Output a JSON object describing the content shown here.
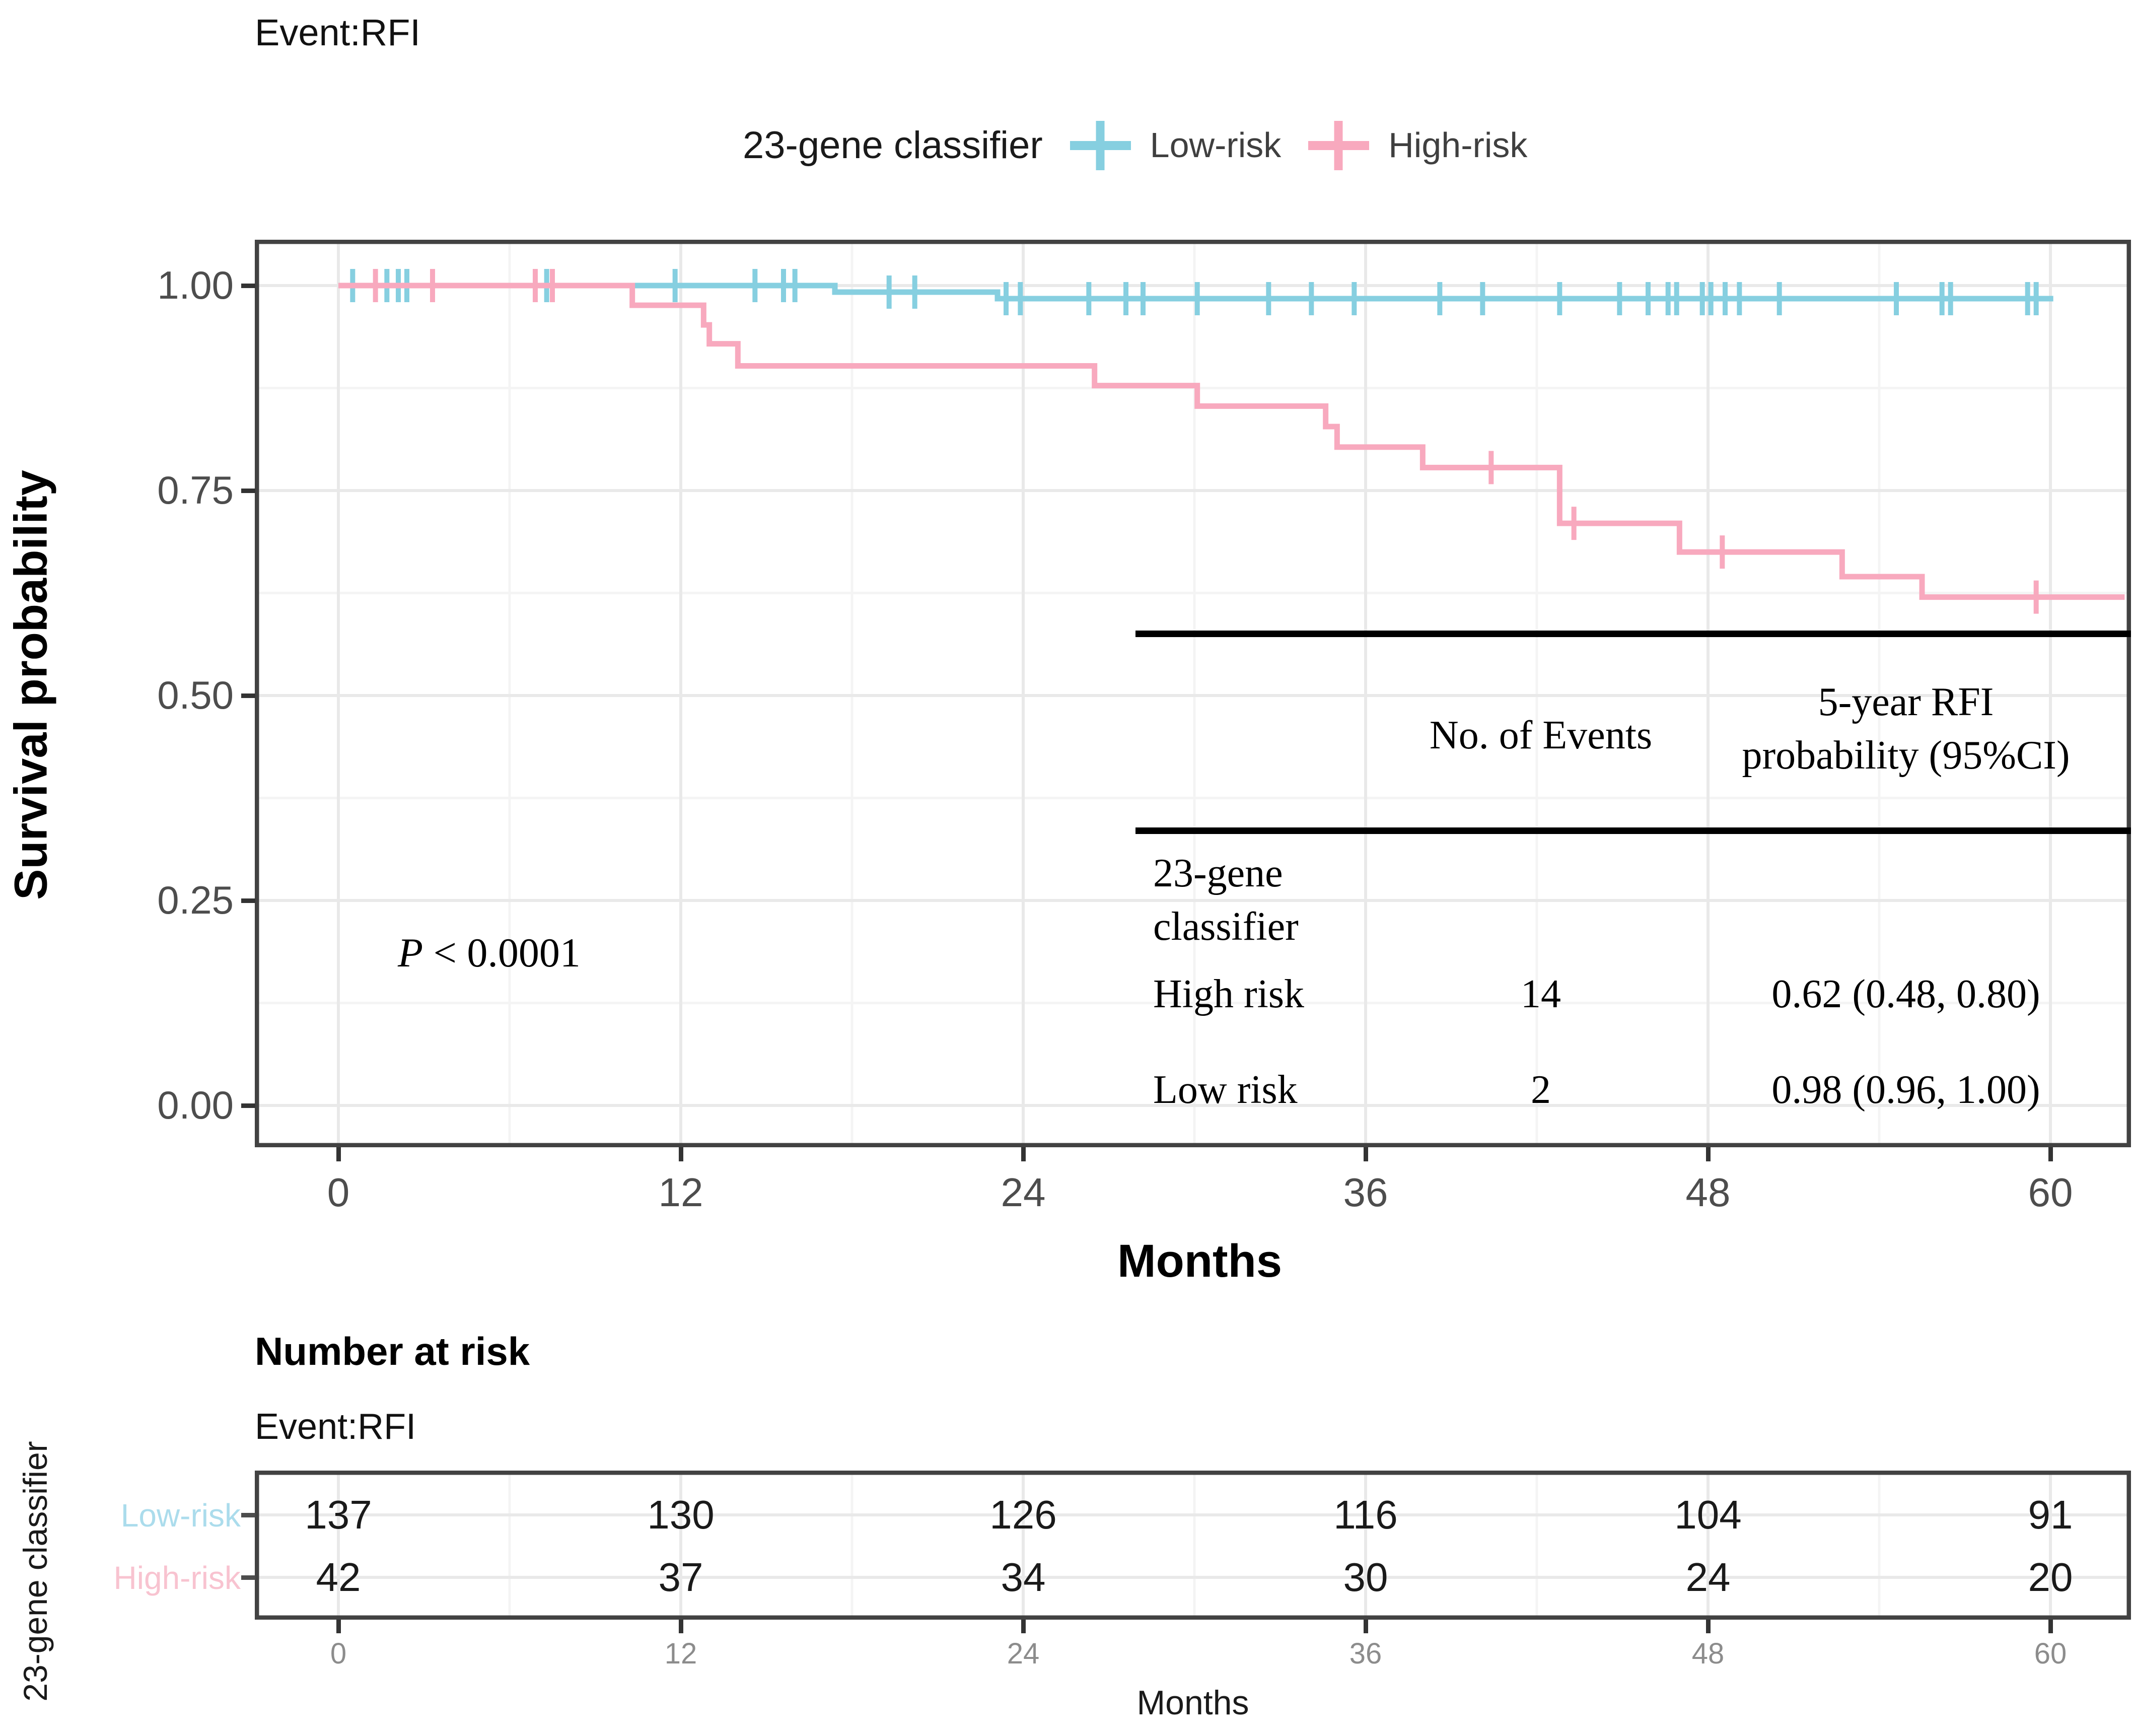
{
  "figure_title": "Event:RFI",
  "colors": {
    "low_risk": "#86CFE0",
    "high_risk": "#F8A9BE",
    "low_risk_label": "#ABDCEC",
    "high_risk_label": "#F8C3D0",
    "grid_major": "#E9E9E9",
    "grid_minor": "#F4F4F4",
    "panel_border": "#424242"
  },
  "legend": {
    "title": "23-gene classifier",
    "items": [
      {
        "label": "Low-risk"
      },
      {
        "label": "High-risk"
      }
    ]
  },
  "yaxis": {
    "title": "Survival probability",
    "ticks": [
      "1.00",
      "0.75",
      "0.50",
      "0.25",
      "0.00"
    ],
    "tick_values": [
      1.0,
      0.75,
      0.5,
      0.25,
      0.0
    ]
  },
  "xaxis": {
    "title": "Months",
    "ticks": [
      "0",
      "12",
      "24",
      "36",
      "48",
      "60"
    ],
    "tick_values": [
      0,
      12,
      24,
      36,
      48,
      60
    ],
    "minor_values": [
      6,
      18,
      30,
      42,
      54
    ]
  },
  "pvalue": {
    "symbol": "P",
    "text": " < 0.0001"
  },
  "stats_table": {
    "col1_header": "No. of Events",
    "col2_header_lines": [
      "5-year RFI",
      "probability (95%CI)"
    ],
    "group_label_lines": [
      "23-gene",
      "classifier"
    ],
    "rows": [
      {
        "label": "High risk",
        "events": "14",
        "estimate": "0.62 (0.48, 0.80)"
      },
      {
        "label": "Low risk",
        "events": "2",
        "estimate": "0.98 (0.96, 1.00)"
      }
    ]
  },
  "chart_data": {
    "type": "line",
    "subtype": "kaplan-meier-step",
    "title": "Event:RFI",
    "xlabel": "Months",
    "ylabel": "Survival probability",
    "xlim": [
      0,
      63
    ],
    "ylim": [
      0.0,
      1.05
    ],
    "grid": "major+minor",
    "legend_position": "top",
    "pvalue": "P < 0.0001",
    "series": [
      {
        "name": "Low-risk",
        "n_events": 2,
        "five_year_estimate": "0.98 (0.96, 1.00)",
        "steps": [
          [
            0,
            1.0
          ],
          [
            17.4,
            0.992
          ],
          [
            23.1,
            0.984
          ]
        ],
        "end_time": 60.1,
        "censor_times": [
          [
            0.5,
            1.0
          ],
          [
            1.7,
            1.0
          ],
          [
            2.1,
            1.0
          ],
          [
            2.4,
            1.0
          ],
          [
            6.9,
            1.0
          ],
          [
            7.3,
            1.0
          ],
          [
            11.8,
            1.0
          ],
          [
            14.6,
            1.0
          ],
          [
            15.6,
            1.0
          ],
          [
            16.0,
            1.0
          ],
          [
            19.3,
            0.992
          ],
          [
            20.2,
            0.992
          ],
          [
            23.4,
            0.984
          ],
          [
            23.9,
            0.984
          ],
          [
            26.3,
            0.984
          ],
          [
            27.6,
            0.984
          ],
          [
            28.2,
            0.984
          ],
          [
            30.1,
            0.984
          ],
          [
            32.6,
            0.984
          ],
          [
            34.1,
            0.984
          ],
          [
            35.6,
            0.984
          ],
          [
            38.6,
            0.984
          ],
          [
            40.1,
            0.984
          ],
          [
            42.8,
            0.984
          ],
          [
            44.9,
            0.984
          ],
          [
            45.9,
            0.984
          ],
          [
            46.6,
            0.984
          ],
          [
            46.9,
            0.984
          ],
          [
            47.8,
            0.984
          ],
          [
            48.1,
            0.984
          ],
          [
            48.6,
            0.984
          ],
          [
            49.1,
            0.984
          ],
          [
            50.5,
            0.984
          ],
          [
            54.6,
            0.984
          ],
          [
            56.2,
            0.984
          ],
          [
            56.5,
            0.984
          ],
          [
            59.2,
            0.984
          ],
          [
            59.5,
            0.984
          ]
        ]
      },
      {
        "name": "High-risk",
        "n_events": 14,
        "five_year_estimate": "0.62 (0.48, 0.80)",
        "steps": [
          [
            0,
            1.0
          ],
          [
            10.3,
            0.976
          ],
          [
            12.8,
            0.952
          ],
          [
            13.0,
            0.929
          ],
          [
            14.0,
            0.902
          ],
          [
            26.5,
            0.878
          ],
          [
            30.1,
            0.853
          ],
          [
            34.6,
            0.828
          ],
          [
            35.0,
            0.803
          ],
          [
            38.0,
            0.778
          ],
          [
            42.8,
            0.71
          ],
          [
            47.0,
            0.675
          ],
          [
            52.7,
            0.645
          ],
          [
            55.5,
            0.62
          ]
        ],
        "end_time": 62.6,
        "censor_times": [
          [
            1.3,
            1.0
          ],
          [
            3.3,
            1.0
          ],
          [
            6.9,
            1.0
          ],
          [
            7.5,
            1.0
          ],
          [
            40.4,
            0.778
          ],
          [
            43.3,
            0.71
          ],
          [
            48.5,
            0.675
          ],
          [
            59.5,
            0.62
          ]
        ]
      }
    ]
  },
  "risk_table": {
    "heading": "Number at risk",
    "subtitle": "Event:RFI",
    "axis_title": "23-gene classifier",
    "xlabel": "Months",
    "tick_labels": [
      "0",
      "12",
      "24",
      "36",
      "48",
      "60"
    ],
    "rows": [
      {
        "label": "Low-risk",
        "counts": [
          "137",
          "130",
          "126",
          "116",
          "104",
          "91"
        ]
      },
      {
        "label": "High-risk",
        "counts": [
          "42",
          "37",
          "34",
          "30",
          "24",
          "20"
        ]
      }
    ]
  }
}
